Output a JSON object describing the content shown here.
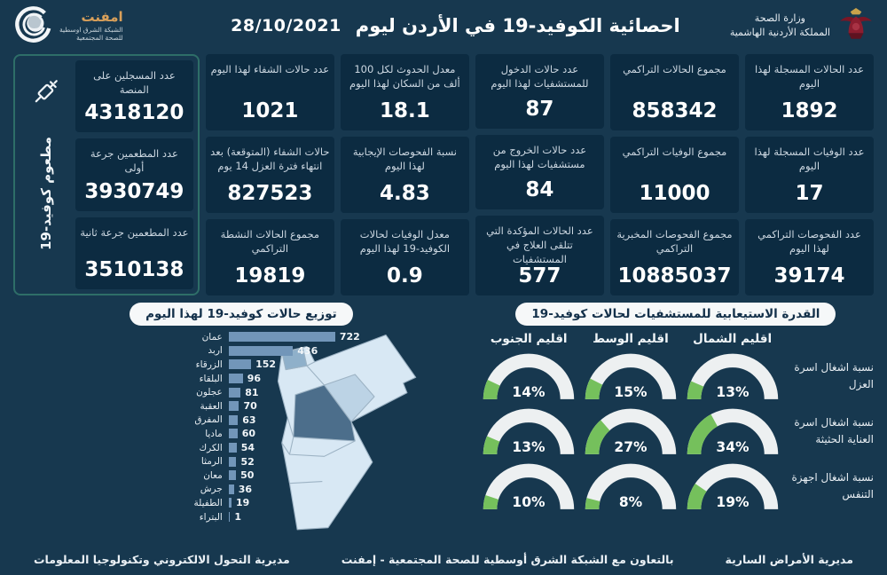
{
  "header": {
    "title": "احصائية الكوفيد-19 في الأردن ليوم",
    "date": "28/10/2021",
    "moh_name": "وزارة الصحة",
    "moh_country": "المملكة الأردنية الهاشمية",
    "emphnet_name": "امفنت",
    "emphnet_sub1": "الشبكة الشرق اوسطية",
    "emphnet_sub2": "للصحة المجتمعية"
  },
  "stats": {
    "columns": [
      {
        "cards": [
          {
            "label": "عدد الحالات المسجلة لهذا اليوم",
            "value": "1892"
          },
          {
            "label": "عدد الوفيات المسجلة لهذا اليوم",
            "value": "17"
          },
          {
            "label": "عدد الفحوصات التراكمي لهذا اليوم",
            "value": "39174"
          }
        ]
      },
      {
        "cards": [
          {
            "label": "مجموع الحالات التراكمي",
            "value": "858342"
          },
          {
            "label": "مجموع الوفيات التراكمي",
            "value": "11000"
          },
          {
            "label": "مجموع الفحوصات المخبرية التراكمي",
            "value": "10885037"
          }
        ]
      },
      {
        "cards": [
          {
            "label": "عدد حالات الدخول للمستشفيات لهذا اليوم",
            "value": "87"
          },
          {
            "label": "عدد حالات الخروج من مستشفيات لهذا اليوم",
            "value": "84"
          },
          {
            "label": "عدد الحالات المؤكدة التي تتلقى العلاج في المستشفيات",
            "value": "577"
          }
        ]
      },
      {
        "cards": [
          {
            "label": "معدل الحدوث لكل 100 ألف من السكان لهذا اليوم",
            "value": "18.1"
          },
          {
            "label": "نسبة الفحوصات الإيجابية لهذا اليوم",
            "value": "4.83"
          },
          {
            "label": "معدل الوفيات لحالات الكوفيد-19 لهذا اليوم",
            "value": "0.9"
          }
        ]
      },
      {
        "cards": [
          {
            "label": "عدد حالات الشفاء لهذا اليوم",
            "value": "1021"
          },
          {
            "label": "حالات الشفاء (المتوقعة) بعد انتهاء فترة العزل 14 يوم",
            "value": "827523"
          },
          {
            "label": "مجموع الحالات النشطة التراكمي",
            "value": "19819"
          }
        ]
      }
    ],
    "vaccine_group": {
      "side_label": "مطعوم كوفيد-19",
      "icon": "syringe-icon",
      "cards": [
        {
          "label": "عدد المسجلين على المنصة",
          "value": "4318120"
        },
        {
          "label": "عدد المطعمين جرعة أولى",
          "value": "3930749"
        },
        {
          "label": "عدد المطعمين جرعة ثانية",
          "value": "3510138"
        }
      ]
    }
  },
  "chart_data": [
    {
      "type": "bar",
      "orientation": "horizontal",
      "title": "توزيع حالات كوفيد-19 لهذا اليوم",
      "categories": [
        "عمان",
        "اربد",
        "الزرقاء",
        "البلقاء",
        "عجلون",
        "العقبة",
        "المفرق",
        "ماديا",
        "الكرك",
        "الرمثا",
        "معان",
        "جرش",
        "الطفيلة",
        "البتراء"
      ],
      "values": [
        722,
        436,
        152,
        96,
        81,
        70,
        63,
        60,
        54,
        52,
        50,
        36,
        19,
        1
      ],
      "xlim": [
        0,
        722
      ],
      "bar_color": "#7296b9",
      "grid": false,
      "value_labels": true
    },
    {
      "type": "gauge",
      "title": "القدرة الاستيعابية للمستشفيات لحالات كوفيد-19",
      "regions": [
        "اقليم الشمال",
        "اقليم الوسط",
        "اقليم الجنوب"
      ],
      "rows": [
        {
          "label": "نسبة اشغال اسرة العزل",
          "values": [
            13,
            15,
            14
          ]
        },
        {
          "label": "نسبة اشغال اسرة العناية الحثيثة",
          "values": [
            34,
            27,
            13
          ]
        },
        {
          "label": "نسبة اشغال اجهزة التنفس",
          "values": [
            19,
            8,
            10
          ]
        }
      ],
      "unit": "%",
      "range": [
        0,
        100
      ],
      "fill_color": "#75c05c",
      "track_color": "#edf0f1"
    }
  ],
  "map": {
    "name": "jordan-governorates-map",
    "highlight_dark": "#4c6e8b",
    "highlight_mid": "#8fb0ca",
    "base": "#d8e8f4"
  },
  "footer": {
    "right": "مديرية الأمراض السارية",
    "center": "بالتعاون مع الشبكة الشرق أوسطية للصحة المجتمعية - إمفنت",
    "left": "مديرية التحول الالكتروني وتكنولوجيا المعلومات"
  },
  "colors": {
    "background": "#17384f",
    "card": "#0c2b41",
    "vaccine_border": "#2e6e68",
    "pill_bg": "#f6f8f9",
    "bar": "#7296b9",
    "gauge_fill": "#75c05c"
  }
}
